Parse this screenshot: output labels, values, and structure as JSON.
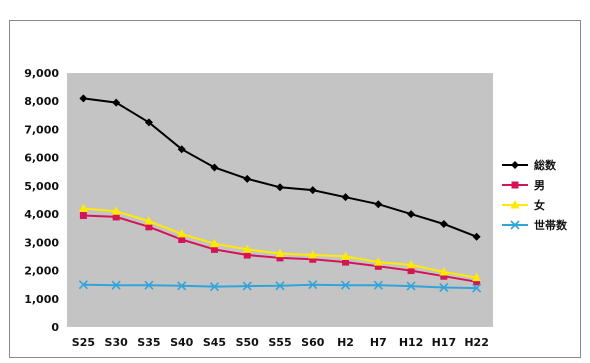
{
  "chart_data": {
    "type": "line",
    "title": "",
    "xlabel": "",
    "ylabel": "",
    "categories": [
      "S25",
      "S30",
      "S35",
      "S40",
      "S45",
      "S50",
      "S55",
      "S60",
      "H2",
      "H7",
      "H12",
      "H17",
      "H22"
    ],
    "ylim": [
      0,
      9000
    ],
    "yticks": [
      "0",
      "1,000",
      "2,000",
      "3,000",
      "4,000",
      "5,000",
      "6,000",
      "7,000",
      "8,000",
      "9,000"
    ],
    "grid": false,
    "legend_position": "right",
    "series": [
      {
        "name": "総数",
        "color": "#000000",
        "marker": "diamond",
        "values": [
          8100,
          7950,
          7250,
          6300,
          5650,
          5250,
          4950,
          4850,
          4600,
          4350,
          4000,
          3650,
          3200
        ]
      },
      {
        "name": "男",
        "color": "#d4145a",
        "marker": "square",
        "values": [
          3950,
          3900,
          3550,
          3100,
          2750,
          2550,
          2450,
          2400,
          2300,
          2150,
          2000,
          1800,
          1600
        ]
      },
      {
        "name": "女",
        "color": "#ffea00",
        "marker": "triangle",
        "values": [
          4200,
          4100,
          3750,
          3300,
          2950,
          2750,
          2600,
          2550,
          2500,
          2300,
          2200,
          1950,
          1750
        ]
      },
      {
        "name": "世帯数",
        "color": "#34a3d9",
        "marker": "x",
        "values": [
          1500,
          1480,
          1480,
          1460,
          1430,
          1450,
          1460,
          1500,
          1480,
          1480,
          1450,
          1400,
          1380
        ]
      }
    ]
  }
}
